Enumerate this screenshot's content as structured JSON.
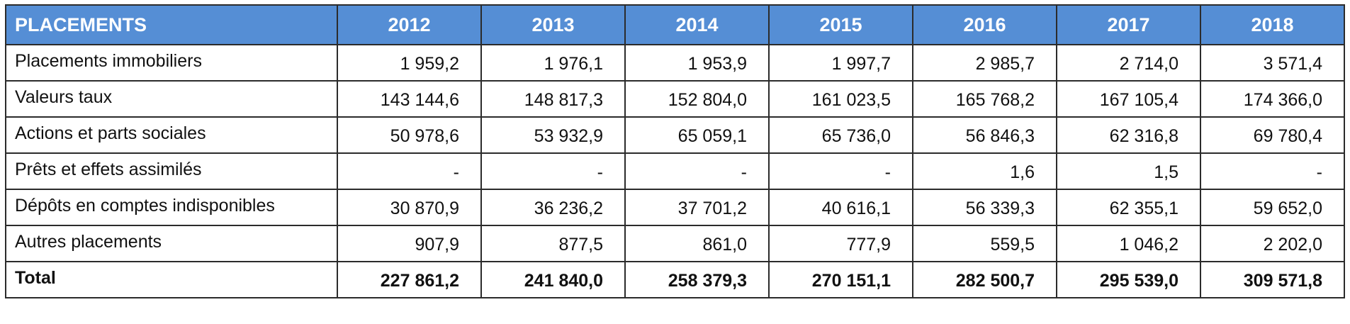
{
  "table": {
    "header": [
      "PLACEMENTS",
      "2012",
      "2013",
      "2014",
      "2015",
      "2016",
      "2017",
      "2018"
    ],
    "rows": [
      {
        "label": "Placements immobiliers",
        "values": [
          "1 959,2",
          "1 976,1",
          "1 953,9",
          "1 997,7",
          "2 985,7",
          "2 714,0",
          "3 571,4"
        ]
      },
      {
        "label": "Valeurs taux",
        "values": [
          "143 144,6",
          "148 817,3",
          "152 804,0",
          "161 023,5",
          "165 768,2",
          "167 105,4",
          "174 366,0"
        ]
      },
      {
        "label": "Actions et parts sociales",
        "values": [
          "50 978,6",
          "53 932,9",
          "65 059,1",
          "65 736,0",
          "56 846,3",
          "62 316,8",
          "69 780,4"
        ]
      },
      {
        "label": "Prêts et effets assimilés",
        "values": [
          "-",
          "-",
          "-",
          "-",
          "1,6",
          "1,5",
          "-"
        ]
      },
      {
        "label": "Dépôts en comptes indisponibles",
        "values": [
          "30 870,9",
          "36 236,2",
          "37 701,2",
          "40 616,1",
          "56 339,3",
          "62 355,1",
          "59 652,0"
        ]
      },
      {
        "label": "Autres placements",
        "values": [
          "907,9",
          "877,5",
          "861,0",
          "777,9",
          "559,5",
          "1 046,2",
          "2 202,0"
        ]
      }
    ],
    "total": {
      "label": "Total",
      "values": [
        "227 861,2",
        "241 840,0",
        "258 379,3",
        "270 151,1",
        "282 500,7",
        "295 539,0",
        "309 571,8"
      ]
    }
  },
  "colors": {
    "header_bg": "#558ED5",
    "header_text": "#FFFFFF"
  }
}
